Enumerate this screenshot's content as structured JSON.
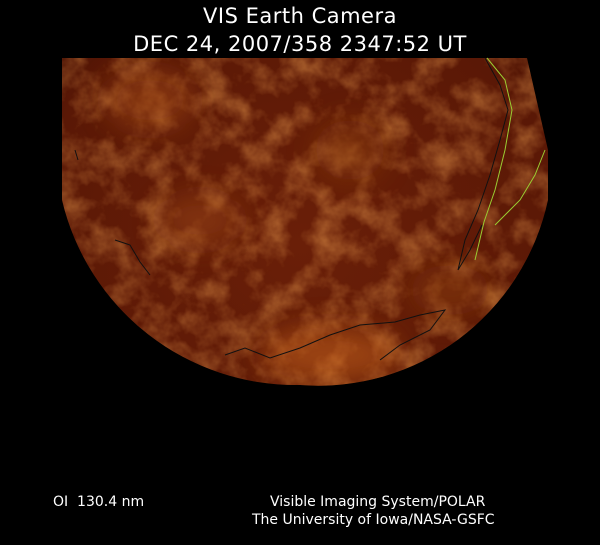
{
  "header": {
    "title": "VIS Earth Camera",
    "timestamp": "DEC 24, 2007/358 2347:52 UT"
  },
  "footer": {
    "filter": "OI  130.4 nm",
    "credit_lines": [
      "Visible Imaging System/POLAR",
      "The University of Iowa/NASA-GSFC"
    ]
  }
}
